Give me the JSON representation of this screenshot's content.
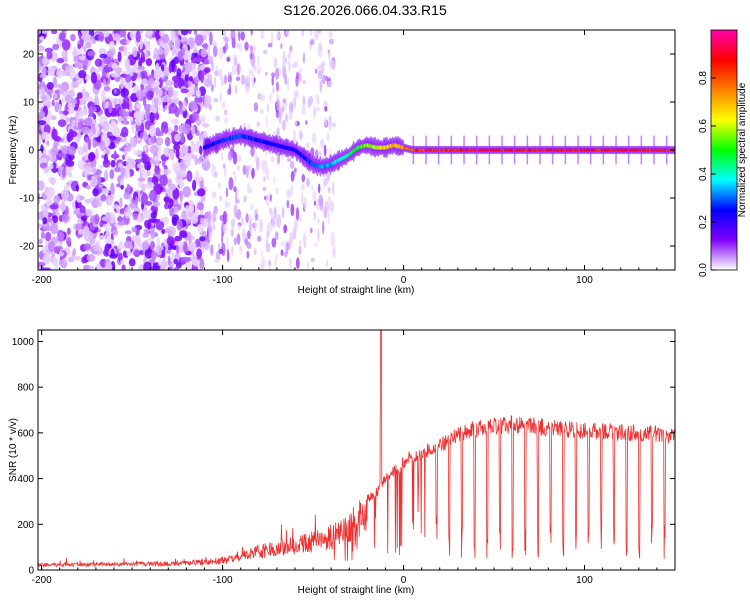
{
  "figure": {
    "title": "S126.2026.066.04.33.R15"
  },
  "chart_data": [
    {
      "type": "heatmap",
      "title": "S126.2026.066.04.33.R15",
      "xlabel": "Height of straight line (km)",
      "ylabel": "Frequency (Hz)",
      "xlim": [
        -202,
        150
      ],
      "ylim": [
        -25,
        25
      ],
      "xticks": [
        -200,
        -100,
        0,
        100
      ],
      "yticks": [
        -20,
        -10,
        0,
        10,
        20
      ],
      "xtick_labels": [
        "-200",
        "-100",
        "0",
        "100"
      ],
      "ytick_labels": [
        "-20",
        "-10",
        "0",
        "10",
        "20"
      ],
      "colorbar": {
        "label": "Normalized spectral amplitude",
        "range": [
          0,
          1
        ],
        "ticks": [
          0.0,
          0.2,
          0.4,
          0.6,
          0.8
        ],
        "tick_labels": [
          "0.0",
          "0.2",
          "0.4",
          "0.6",
          "0.8"
        ],
        "colormap": [
          "#ffffff",
          "#8000ff",
          "#0000ff",
          "#00ffff",
          "#00ff00",
          "#ffff00",
          "#ff8000",
          "#ff0000",
          "#ff00aa"
        ]
      },
      "carrier_track": {
        "x": [
          -110,
          -100,
          -90,
          -80,
          -70,
          -60,
          -55,
          -50,
          -45,
          -40,
          -35,
          -30,
          -25,
          -20,
          -15,
          -10,
          -5,
          0,
          5,
          10,
          20,
          50,
          100,
          150
        ],
        "frequency": [
          0.5,
          2.0,
          3.0,
          2.0,
          1.0,
          0.0,
          -1.5,
          -3.0,
          -3.5,
          -3.0,
          -2.0,
          -1.0,
          0.5,
          1.0,
          0.5,
          0.5,
          1.0,
          0.5,
          0.0,
          0.0,
          0.0,
          0.0,
          0.0,
          0.0
        ],
        "amplitude": [
          0.25,
          0.3,
          0.3,
          0.28,
          0.25,
          0.25,
          0.28,
          0.3,
          0.35,
          0.35,
          0.4,
          0.45,
          0.55,
          0.6,
          0.65,
          0.7,
          0.75,
          0.8,
          0.85,
          0.9,
          0.92,
          0.95,
          0.95,
          0.95
        ]
      },
      "noise_region": {
        "x_start": -202,
        "x_end": -108
      },
      "seed": 7
    },
    {
      "type": "line",
      "xlabel": "Height of straight line (km)",
      "ylabel": "SNR (10 * v/v)",
      "xlim": [
        -202,
        150
      ],
      "ylim": [
        0,
        1050
      ],
      "xticks": [
        -200,
        -100,
        0,
        100
      ],
      "yticks": [
        0,
        200,
        400,
        600,
        800,
        1000
      ],
      "xtick_labels": [
        "-200",
        "-100",
        "0",
        "100"
      ],
      "ytick_labels": [
        "0",
        "200",
        "400",
        "600",
        "800",
        "1000"
      ],
      "series": [
        {
          "name": "SNR",
          "color": "#ee3030",
          "envelope_x": [
            -202,
            -150,
            -120,
            -100,
            -90,
            -80,
            -70,
            -60,
            -50,
            -40,
            -30,
            -25,
            -20,
            -15,
            -10,
            -5,
            0,
            5,
            10,
            20,
            30,
            40,
            50,
            60,
            70,
            80,
            100,
            120,
            150
          ],
          "envelope_y": [
            30,
            35,
            40,
            55,
            80,
            110,
            130,
            150,
            170,
            200,
            260,
            300,
            330,
            360,
            420,
            460,
            500,
            530,
            540,
            580,
            630,
            660,
            670,
            680,
            670,
            660,
            650,
            640,
            630
          ],
          "spike": {
            "x": -12.5,
            "y": 1050
          },
          "periodic_dips": {
            "start": 18,
            "period": 7,
            "depth_to": 120
          }
        }
      ]
    }
  ]
}
